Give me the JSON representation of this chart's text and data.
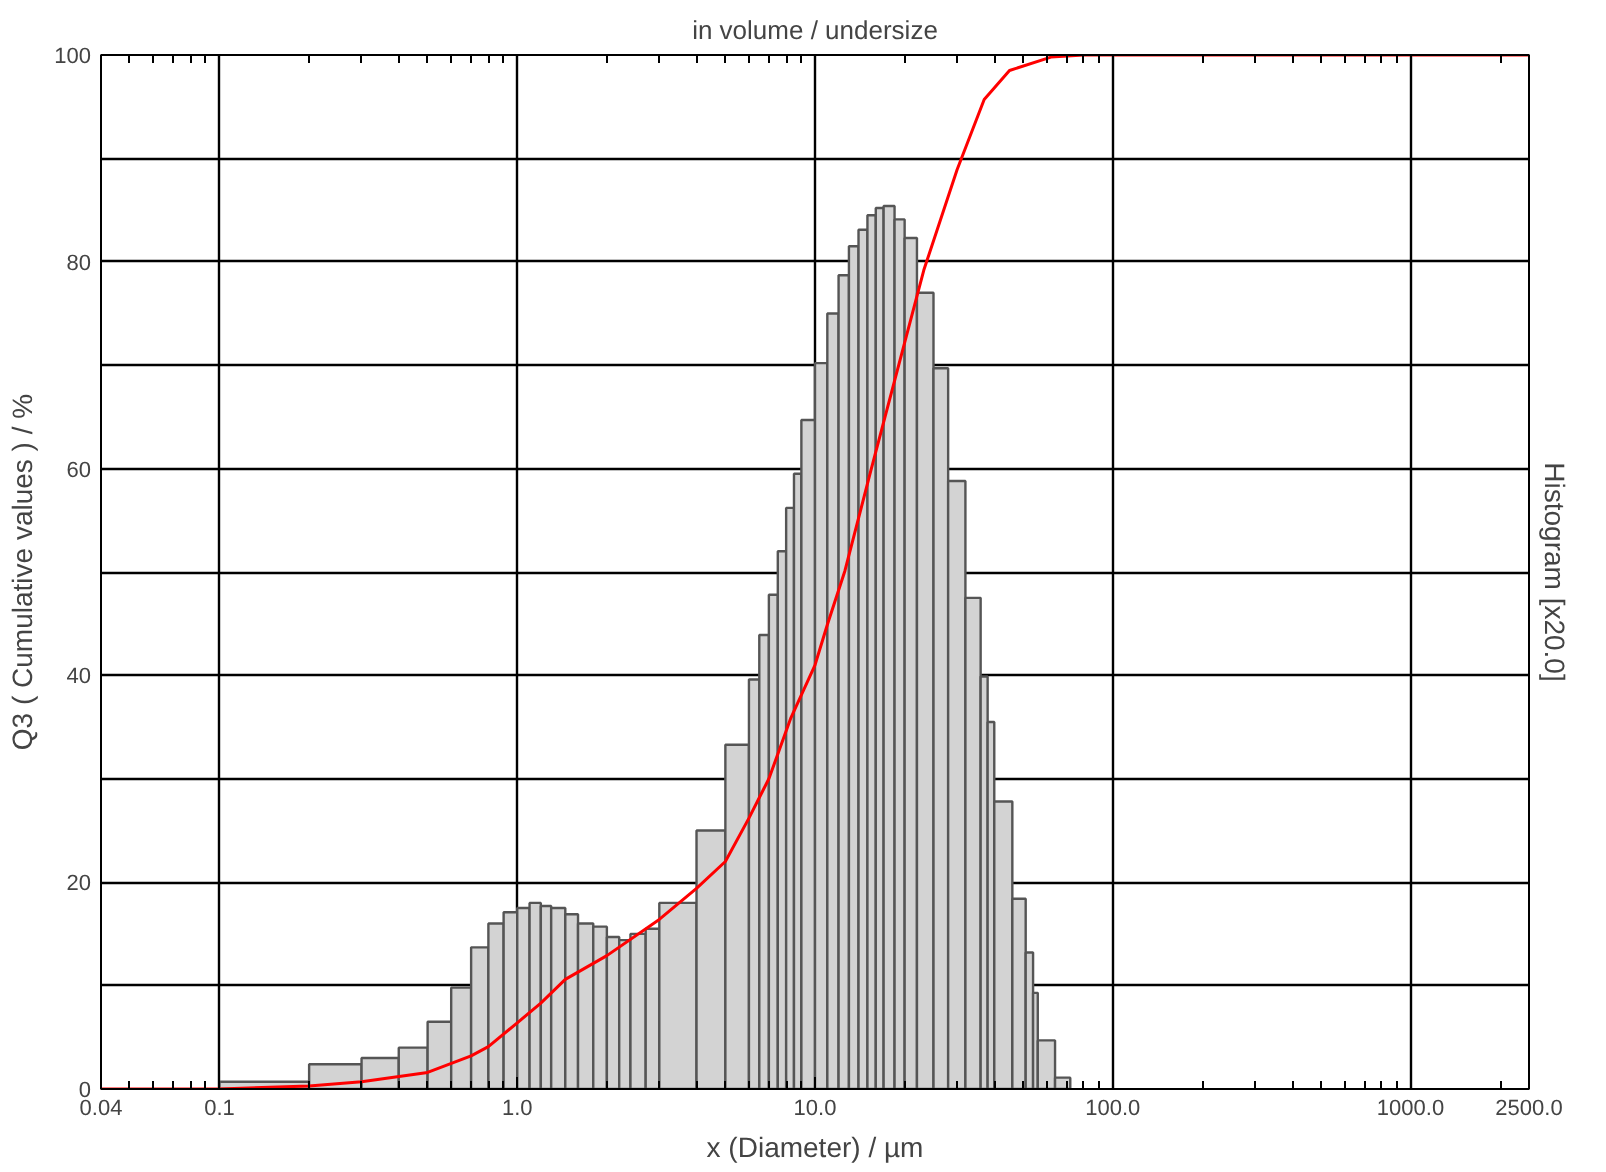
{
  "chart_data": {
    "type": "histogram",
    "title": "in volume / undersize",
    "xlabel": "x (Diameter) / µm",
    "ylabel": "Q3 ( Cumulative values ) / %",
    "y2label": "Histogram [x20.0]",
    "log": "x",
    "grid": true,
    "xlim": [
      0.04,
      2500
    ],
    "xticks": [
      {
        "value": 0.04,
        "label": "0.04"
      },
      {
        "value": 0.1,
        "label": "0.1"
      },
      {
        "value": 1,
        "label": "1.0"
      },
      {
        "value": 10,
        "label": "10.0"
      },
      {
        "value": 100,
        "label": "100.0"
      },
      {
        "value": 1000,
        "label": "1000.0"
      },
      {
        "value": 2500,
        "label": "2500.0"
      }
    ],
    "ylim": [
      0,
      100
    ],
    "yticks": [
      0,
      {
        "value": 10,
        "label": null
      },
      20,
      {
        "value": 30,
        "label": null
      },
      40,
      {
        "value": 50,
        "label": null
      },
      60,
      {
        "value": 70,
        "label": null
      },
      80,
      {
        "value": 90,
        "label": null
      },
      100
    ],
    "series": [
      {
        "color": "#d3d3d3",
        "bins": [
          0.1,
          0.2,
          0.3,
          0.4,
          0.5,
          0.6,
          0.7,
          0.8,
          0.9,
          1.0,
          1.1,
          1.2,
          1.3,
          1.45,
          1.6,
          1.8,
          2.0,
          2.2,
          2.4,
          2.7,
          3.0,
          4.0,
          5.0,
          6.0,
          6.5,
          7.0,
          7.5,
          8.0,
          8.5,
          9.0,
          10,
          11,
          12,
          13,
          14,
          15,
          16,
          17,
          18.5,
          20,
          22,
          25,
          28,
          32,
          36,
          38,
          40,
          46,
          51,
          54,
          56,
          64,
          72
        ],
        "values": [
          0.7,
          2.4,
          3.0,
          4.0,
          6.5,
          9.8,
          13.7,
          16.0,
          17.1,
          17.5,
          18.0,
          17.7,
          17.5,
          16.9,
          16.0,
          15.7,
          14.7,
          14.4,
          15.0,
          15.5,
          18.0,
          25.0,
          33.3,
          39.6,
          43.9,
          47.8,
          52.0,
          56.2,
          59.5,
          64.7,
          70.2,
          75.0,
          78.7,
          81.5,
          83.1,
          84.5,
          85.2,
          85.4,
          84.1,
          82.3,
          77.0,
          69.7,
          58.8,
          47.5,
          39.9,
          35.5,
          27.8,
          18.4,
          13.2,
          9.3,
          4.7,
          1.1
        ]
      },
      {
        "type": "line",
        "color": "#ff0000",
        "x": [
          0.04,
          0.1,
          0.2,
          0.3,
          0.5,
          0.7,
          0.8,
          1.0,
          1.2,
          1.45,
          2.0,
          3.0,
          4.0,
          5.0,
          6.0,
          7.0,
          8.3,
          10,
          11,
          12.6,
          15.4,
          18.9,
          23.2,
          30,
          37,
          45,
          62,
          80,
          2500
        ],
        "values": [
          0,
          0,
          0.3,
          0.7,
          1.6,
          3.2,
          4.1,
          6.4,
          8.3,
          10.6,
          12.9,
          16.4,
          19.4,
          22,
          26.2,
          30,
          35.9,
          41,
          44.9,
          50.1,
          59.8,
          69.5,
          79.2,
          88.9,
          95.7,
          98.5,
          99.8,
          100,
          100
        ]
      }
    ]
  }
}
